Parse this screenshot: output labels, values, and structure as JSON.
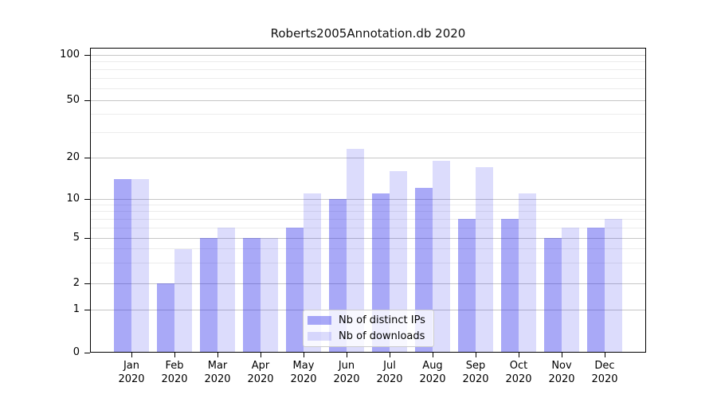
{
  "chart_data": {
    "type": "bar",
    "title": "Roberts2005Annotation.db 2020",
    "categories": [
      "Jan",
      "Feb",
      "Mar",
      "Apr",
      "May",
      "Jun",
      "Jul",
      "Aug",
      "Sep",
      "Oct",
      "Nov",
      "Dec"
    ],
    "category_year_label": "2020",
    "series": [
      {
        "name": "Nb of distinct IPs",
        "color": "rgba(40,40,235,0.40)",
        "values": [
          14,
          2,
          5,
          5,
          6,
          10,
          11,
          12,
          7,
          7,
          5,
          6
        ]
      },
      {
        "name": "Nb of downloads",
        "color": "rgba(40,40,235,0.16)",
        "values": [
          14,
          4,
          6,
          5,
          11,
          23,
          16,
          19,
          17,
          11,
          6,
          7
        ]
      }
    ],
    "xlabel": "",
    "ylabel": "",
    "y_axis": {
      "scale": "symlog",
      "major_ticks": [
        0,
        1,
        2,
        5,
        10,
        20,
        50,
        100
      ],
      "major_tick_labels": [
        "0",
        "1",
        "2",
        "5",
        "10",
        "20",
        "50",
        "100"
      ],
      "minor_ticks": [
        3,
        4,
        6,
        7,
        8,
        9,
        30,
        40,
        60,
        70,
        80,
        90
      ],
      "ylim": [
        0,
        112
      ]
    },
    "grid": {
      "major": true,
      "minor": true
    },
    "legend": {
      "position": "lower-center",
      "entries": [
        "Nb of distinct IPs",
        "Nb of downloads"
      ]
    }
  },
  "colors": {
    "background": "#ffffff",
    "axis": "#000000",
    "major_grid": "#c6c6c6",
    "minor_grid": "#ececec",
    "bar_dark_solid": "#a9a9f7",
    "bar_light_solid": "#dcdcfb",
    "legend_border": "#cccccc"
  }
}
